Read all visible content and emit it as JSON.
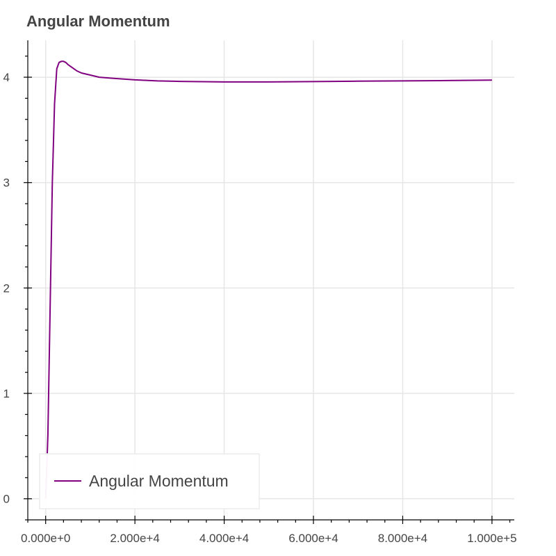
{
  "chart_data": {
    "type": "line",
    "title": "Angular Momentum",
    "xlabel": "",
    "ylabel": "",
    "xlim": [
      -4000,
      105000
    ],
    "ylim": [
      -0.2,
      4.35
    ],
    "xticks": [
      0,
      20000,
      40000,
      60000,
      80000,
      100000
    ],
    "xtick_labels": [
      "0.000e+0",
      "2.000e+4",
      "4.000e+4",
      "6.000e+4",
      "8.000e+4",
      "1.000e+5"
    ],
    "yticks": [
      0,
      1,
      2,
      3,
      4
    ],
    "ytick_labels": [
      "0",
      "1",
      "2",
      "3",
      "4"
    ],
    "grid": true,
    "legend_position": "bottom-left",
    "series": [
      {
        "name": "Angular Momentum",
        "color": "#800080",
        "x": [
          0,
          500,
          1000,
          1500,
          2000,
          2500,
          3000,
          3500,
          4000,
          4500,
          5000,
          6000,
          7000,
          8000,
          10000,
          12000,
          15000,
          20000,
          25000,
          30000,
          40000,
          50000,
          60000,
          70000,
          80000,
          90000,
          100000
        ],
        "y": [
          0.0,
          0.6,
          1.8,
          3.0,
          3.75,
          4.08,
          4.14,
          4.15,
          4.15,
          4.14,
          4.12,
          4.09,
          4.06,
          4.04,
          4.02,
          4.0,
          3.99,
          3.975,
          3.965,
          3.96,
          3.955,
          3.955,
          3.958,
          3.962,
          3.965,
          3.968,
          3.972
        ]
      }
    ]
  }
}
